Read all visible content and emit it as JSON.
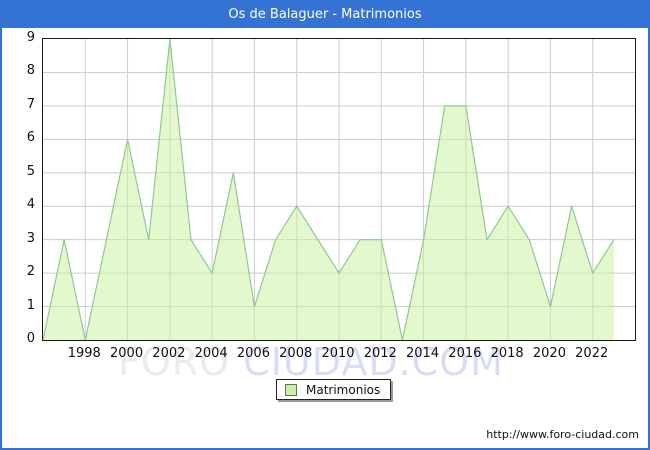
{
  "window": {
    "title": "Os de Balaguer - Matrimonios"
  },
  "chart_data": {
    "type": "area",
    "title": "Os de Balaguer - Matrimonios",
    "x": [
      1996,
      1997,
      1998,
      1999,
      2000,
      2001,
      2002,
      2003,
      2004,
      2005,
      2006,
      2007,
      2008,
      2009,
      2010,
      2011,
      2012,
      2013,
      2014,
      2015,
      2016,
      2017,
      2018,
      2019,
      2020,
      2021,
      2022,
      2023
    ],
    "series": [
      {
        "name": "Matrimonios",
        "values": [
          0,
          3,
          0,
          3,
          6,
          3,
          9,
          3,
          2,
          5,
          1,
          3,
          4,
          3,
          2,
          3,
          3,
          0,
          3,
          7,
          7,
          3,
          4,
          3,
          1,
          4,
          2,
          3
        ]
      }
    ],
    "xlim": [
      1996,
      2024
    ],
    "ylim": [
      0,
      9
    ],
    "xticks": [
      1998,
      2000,
      2002,
      2004,
      2006,
      2008,
      2010,
      2012,
      2014,
      2016,
      2018,
      2020,
      2022
    ],
    "yticks": [
      0,
      1,
      2,
      3,
      4,
      5,
      6,
      7,
      8,
      9
    ],
    "grid": true,
    "legend_position": "bottom-center",
    "colors": {
      "line": "#8cca92",
      "fill": "#c9f19e",
      "grid": "#cccccc",
      "axis_border": "#1a1a1a",
      "titlebar": "#3473d4",
      "frame": "#3473d4"
    }
  },
  "legend": {
    "label": "Matrimonios",
    "swatch_color": "#c9f19e"
  },
  "watermark": {
    "part1": "FORO ",
    "part2": "CIUDAD.COM"
  },
  "footer": {
    "url": "http://www.foro-ciudad.com"
  }
}
